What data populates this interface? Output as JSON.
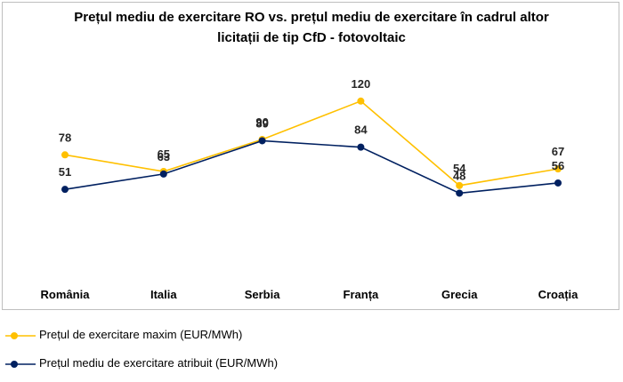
{
  "chart_data": {
    "type": "line",
    "title": "Prețul mediu de exercitare RO vs. prețul mediu de exercitare în cadrul altor licitații de tip CfD - fotovoltaic",
    "categories": [
      "România",
      "Italia",
      "Serbia",
      "Franța",
      "Grecia",
      "Croația"
    ],
    "series": [
      {
        "name": "Prețul de exercitare maxim (EUR/MWh)",
        "values": [
          78,
          65,
          90,
          120,
          54,
          67
        ],
        "color": "#ffc000"
      },
      {
        "name": "Prețul mediu de exercitare atribuit (EUR/MWh)",
        "values": [
          51,
          63,
          89,
          84,
          48,
          56
        ],
        "color": "#002060"
      }
    ],
    "xlabel": "",
    "ylabel": "",
    "grid": false,
    "legend_position": "bottom-left"
  }
}
